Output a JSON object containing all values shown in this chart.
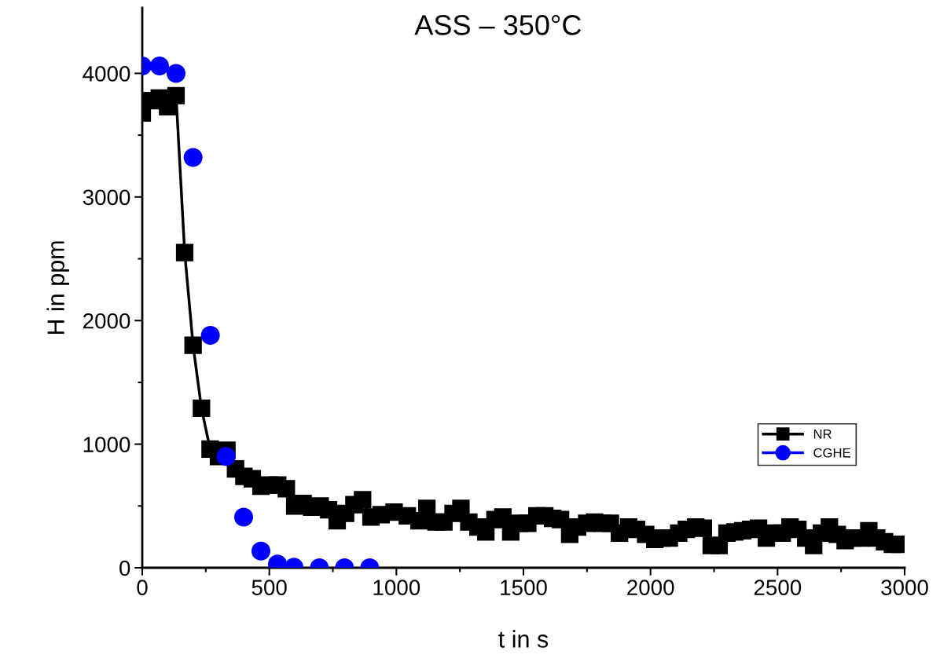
{
  "chart_data": {
    "type": "line",
    "title": "ASS – 350°C",
    "xlabel": "t in s",
    "ylabel": "H in ppm",
    "xlim": [
      0,
      3000
    ],
    "ylim": [
      0,
      4530
    ],
    "xticks": [
      0,
      {
        "value": 250,
        "label": null
      },
      500,
      {
        "value": 750,
        "label": null
      },
      1000,
      {
        "value": 1250,
        "label": null
      },
      1500,
      {
        "value": 1750,
        "label": null
      },
      2000,
      {
        "value": 2250,
        "label": null
      },
      2500,
      {
        "value": 2750,
        "label": null
      },
      3000
    ],
    "yticks": [
      0,
      {
        "value": 500,
        "label": null
      },
      1000,
      {
        "value": 1500,
        "label": null
      },
      2000,
      {
        "value": 2500,
        "label": null
      },
      3000,
      {
        "value": 3500,
        "label": null
      },
      4000
    ],
    "grid": false,
    "legend": "right",
    "series": [
      {
        "name": "NR",
        "color": "#000000",
        "marker": "square",
        "line_style": "solid",
        "x": [
          0,
          33,
          67,
          100,
          133,
          167,
          200,
          233,
          267,
          300,
          333,
          367,
          400,
          433,
          467,
          500,
          533,
          567,
          600,
          633,
          667,
          700,
          733,
          767,
          800,
          833,
          867,
          900,
          940,
          991,
          1043,
          1089,
          1120,
          1156,
          1187,
          1223,
          1254,
          1285,
          1321,
          1352,
          1388,
          1419,
          1450,
          1486,
          1517,
          1553,
          1584,
          1615,
          1646,
          1682,
          1713,
          1749,
          1780,
          1811,
          1842,
          1878,
          1914,
          1945,
          1981,
          2017,
          2044,
          2074,
          2111,
          2141,
          2178,
          2208,
          2239,
          2270,
          2301,
          2332,
          2363,
          2394,
          2425,
          2456,
          2487,
          2518,
          2549,
          2580,
          2611,
          2642,
          2673,
          2704,
          2735,
          2766,
          2797,
          2828,
          2859,
          2890,
          2921,
          2952,
          2983
        ],
        "values": [
          3680,
          3780,
          3800,
          3730,
          3820,
          2550,
          1800,
          1290,
          960,
          900,
          950,
          800,
          740,
          720,
          660,
          670,
          670,
          640,
          500,
          520,
          490,
          500,
          470,
          380,
          440,
          510,
          550,
          410,
          430,
          450,
          420,
          380,
          480,
          370,
          370,
          440,
          480,
          370,
          330,
          290,
          390,
          410,
          290,
          360,
          360,
          420,
          420,
          400,
          390,
          270,
          330,
          360,
          370,
          360,
          360,
          280,
          330,
          310,
          270,
          230,
          240,
          240,
          280,
          310,
          330,
          320,
          180,
          180,
          280,
          290,
          300,
          310,
          320,
          240,
          280,
          280,
          330,
          310,
          240,
          180,
          280,
          330,
          270,
          220,
          240,
          240,
          300,
          240,
          210,
          190,
          190
        ]
      },
      {
        "name": "CGHE",
        "type": "scatter",
        "color": "#0000ff",
        "marker": "circle",
        "x": [
          0,
          68,
          133,
          200,
          268,
          330,
          399,
          467,
          532,
          597,
          697,
          796,
          895
        ],
        "values": [
          4060,
          4060,
          4000,
          3320,
          1880,
          900,
          410,
          135,
          30,
          5,
          0,
          0,
          0
        ]
      }
    ]
  }
}
